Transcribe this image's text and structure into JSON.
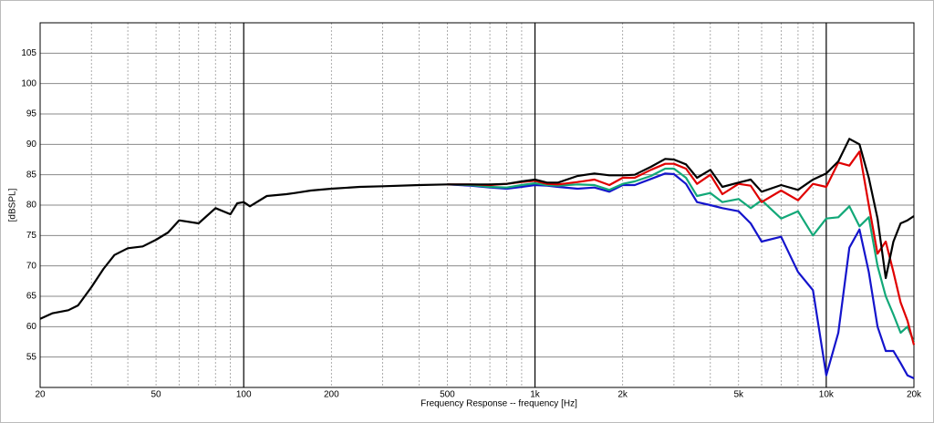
{
  "chart_data": {
    "type": "line",
    "xlabel": "Frequency Response -- frequency [Hz]",
    "ylabel": "[dBSPL]",
    "xscale": "log",
    "grid": true,
    "minor_grid": true,
    "xlim": [
      20,
      20000
    ],
    "xticks": [
      20,
      50,
      100,
      200,
      500,
      {
        "value": 1000,
        "label": "1k"
      },
      {
        "value": 2000,
        "label": "2k"
      },
      {
        "value": 5000,
        "label": "5k"
      },
      {
        "value": 10000,
        "label": "10k"
      },
      {
        "value": 20000,
        "label": "20k"
      }
    ],
    "ylim": [
      50,
      110
    ],
    "yticks": [
      55,
      60,
      65,
      70,
      75,
      80,
      85,
      90,
      95,
      100,
      105
    ],
    "x": [
      20,
      22,
      25,
      27,
      30,
      33,
      36,
      40,
      45,
      50,
      55,
      60,
      70,
      80,
      90,
      95,
      100,
      105,
      120,
      140,
      150,
      170,
      200,
      250,
      300,
      400,
      500,
      600,
      700,
      800,
      900,
      1000,
      1100,
      1200,
      1400,
      1600,
      1800,
      2000,
      2200,
      2500,
      2800,
      3000,
      3300,
      3600,
      4000,
      4400,
      5000,
      5500,
      6000,
      7000,
      8000,
      9000,
      10000,
      11000,
      12000,
      13000,
      14000,
      15000,
      16000,
      17000,
      18000,
      19000,
      20000
    ],
    "series": [
      {
        "name": "black",
        "color": "#000000",
        "values": [
          61.3,
          62.2,
          62.7,
          63.5,
          66.5,
          69.5,
          71.8,
          72.9,
          73.2,
          74.3,
          75.5,
          77.5,
          77,
          79.5,
          78.5,
          80.3,
          80.5,
          79.8,
          81.5,
          81.8,
          82,
          82.4,
          82.7,
          83,
          83.1,
          83.3,
          83.4,
          83.4,
          83.4,
          83.5,
          83.9,
          84.2,
          83.7,
          83.7,
          84.8,
          85.2,
          84.9,
          84.9,
          85,
          86.3,
          87.6,
          87.5,
          86.7,
          84.5,
          85.8,
          83,
          83.7,
          84.2,
          82.2,
          83.3,
          82.5,
          84.2,
          85.2,
          87.2,
          90.9,
          90,
          84.5,
          77.8,
          68,
          74,
          77,
          77.5,
          78.2
        ]
      },
      {
        "name": "red",
        "color": "#e00000",
        "values": [
          null,
          null,
          null,
          null,
          null,
          null,
          null,
          null,
          null,
          null,
          null,
          null,
          null,
          null,
          null,
          null,
          null,
          null,
          null,
          null,
          null,
          null,
          null,
          null,
          null,
          null,
          83.4,
          83.4,
          83.3,
          83.5,
          83.8,
          84,
          83.5,
          83.4,
          83.8,
          84.2,
          83.3,
          84.5,
          84.5,
          85.8,
          86.8,
          86.8,
          86,
          83.5,
          85,
          81.8,
          83.5,
          83.2,
          80.5,
          82.4,
          80.8,
          83.5,
          83,
          87,
          86.5,
          88.8,
          80,
          72,
          74,
          69,
          64,
          61,
          57
        ]
      },
      {
        "name": "green",
        "color": "#12a878",
        "values": [
          null,
          null,
          null,
          null,
          null,
          null,
          null,
          null,
          null,
          null,
          null,
          null,
          null,
          null,
          null,
          null,
          null,
          null,
          null,
          null,
          null,
          null,
          null,
          null,
          null,
          null,
          83.4,
          83.3,
          83,
          82.9,
          83.3,
          83.6,
          83.3,
          83.2,
          83.4,
          83.3,
          82.5,
          83.5,
          83.9,
          84.8,
          86,
          86,
          84.5,
          81.5,
          82,
          80.5,
          81,
          79.5,
          80.8,
          77.8,
          79,
          75,
          77.8,
          78,
          79.8,
          76.5,
          78,
          70,
          65,
          62,
          59,
          60,
          57.5
        ]
      },
      {
        "name": "blue",
        "color": "#1414cc",
        "values": [
          null,
          null,
          null,
          null,
          null,
          null,
          null,
          null,
          null,
          null,
          null,
          null,
          null,
          null,
          null,
          null,
          null,
          null,
          null,
          null,
          null,
          null,
          null,
          null,
          null,
          null,
          83.4,
          83.2,
          82.9,
          82.7,
          83,
          83.3,
          83.2,
          83,
          82.7,
          82.9,
          82.2,
          83.3,
          83.3,
          84.3,
          85.2,
          85.1,
          83.5,
          80.5,
          80,
          79.5,
          79,
          77,
          74,
          74.8,
          69,
          66,
          52,
          59,
          73,
          76,
          69,
          60,
          56,
          56,
          54,
          52,
          51.5
        ]
      }
    ]
  }
}
